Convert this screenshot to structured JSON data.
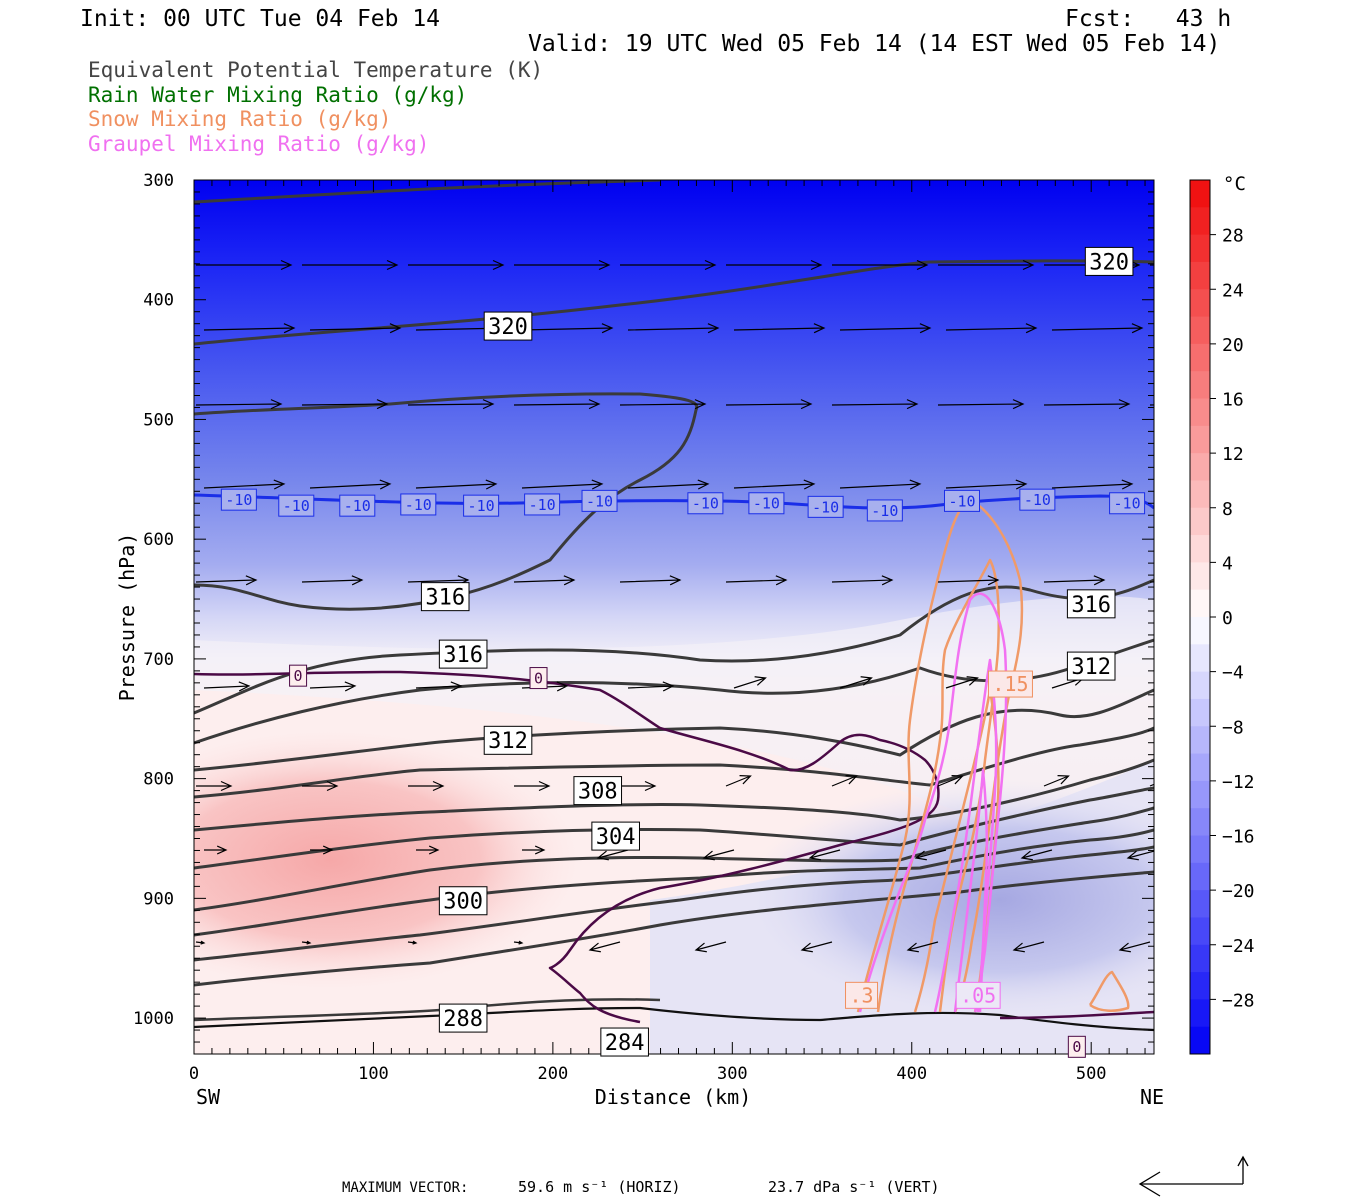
{
  "header": {
    "init": "Init: 00 UTC Tue 04 Feb 14",
    "fcst": "Fcst:   43 h",
    "valid": "Valid: 19 UTC Wed 05 Feb 14 (14 EST Wed 05 Feb 14)"
  },
  "legend": {
    "items": [
      {
        "label": "Equivalent Potential Temperature (K)",
        "color": "#444444"
      },
      {
        "label": "Rain Water Mixing Ratio (g/kg)",
        "color": "#007000"
      },
      {
        "label": "Snow Mixing Ratio (g/kg)",
        "color": "#f09060"
      },
      {
        "label": "Graupel Mixing Ratio (g/kg)",
        "color": "#f070f0"
      }
    ]
  },
  "chart_data": {
    "type": "cross-section",
    "xlabel": "Distance (km)",
    "ylabel": "Pressure (hPa)",
    "xlim": [
      0,
      535
    ],
    "ylim": [
      1030,
      300
    ],
    "x_ticks": [
      0,
      100,
      200,
      300,
      400,
      500
    ],
    "y_ticks": [
      300,
      400,
      500,
      600,
      700,
      800,
      900,
      1000
    ],
    "left_end_label": "SW",
    "right_end_label": "NE",
    "colorbar": {
      "unit": "°C",
      "tick_values": [
        28,
        24,
        20,
        16,
        12,
        8,
        4,
        0,
        -4,
        -8,
        -12,
        -16,
        -20,
        -24,
        -28
      ],
      "range": [
        -32,
        32
      ]
    },
    "theta_e_contour_labels": [
      {
        "text": "320",
        "x": 175,
        "p": 422
      },
      {
        "text": "320",
        "x": 510,
        "p": 368
      },
      {
        "text": "316",
        "x": 140,
        "p": 648
      },
      {
        "text": "316",
        "x": 150,
        "p": 696
      },
      {
        "text": "316",
        "x": 500,
        "p": 654
      },
      {
        "text": "312",
        "x": 500,
        "p": 706
      },
      {
        "text": "312",
        "x": 175,
        "p": 768
      },
      {
        "text": "308",
        "x": 225,
        "p": 810
      },
      {
        "text": "304",
        "x": 235,
        "p": 848
      },
      {
        "text": "300",
        "x": 150,
        "p": 902
      },
      {
        "text": "288",
        "x": 150,
        "p": 1000
      },
      {
        "text": "284",
        "x": 240,
        "p": 1020
      }
    ],
    "isotherm_labels": [
      {
        "text": "-10",
        "x": 25,
        "p": 567
      },
      {
        "text": "-10",
        "x": 57,
        "p": 572
      },
      {
        "text": "-10",
        "x": 91,
        "p": 572
      },
      {
        "text": "-10",
        "x": 125,
        "p": 571
      },
      {
        "text": "-10",
        "x": 160,
        "p": 572
      },
      {
        "text": "-10",
        "x": 194,
        "p": 571
      },
      {
        "text": "-10",
        "x": 226,
        "p": 568
      },
      {
        "text": "-10",
        "x": 285,
        "p": 570
      },
      {
        "text": "-10",
        "x": 319,
        "p": 570
      },
      {
        "text": "-10",
        "x": 352,
        "p": 573
      },
      {
        "text": "-10",
        "x": 385,
        "p": 576
      },
      {
        "text": "-10",
        "x": 428,
        "p": 568
      },
      {
        "text": "-10",
        "x": 470,
        "p": 567
      },
      {
        "text": "-10",
        "x": 520,
        "p": 570
      }
    ],
    "zero_isotherm_labels": [
      {
        "text": "0",
        "x": 58,
        "p": 714
      },
      {
        "text": "0",
        "x": 192,
        "p": 716
      },
      {
        "text": "0",
        "x": 492,
        "p": 1024
      }
    ],
    "snow_labels": [
      {
        "text": ".15",
        "x": 455,
        "p": 721
      },
      {
        "text": ".3",
        "x": 372,
        "p": 981
      }
    ],
    "graupel_labels": [
      {
        "text": ".05",
        "x": 437,
        "p": 981
      }
    ]
  },
  "footer": {
    "max_vector_label": "MAXIMUM VECTOR:",
    "horiz_value": "59.6 m s⁻¹ (HORIZ)",
    "vert_value": "23.7 dPa s⁻¹ (VERT)"
  }
}
